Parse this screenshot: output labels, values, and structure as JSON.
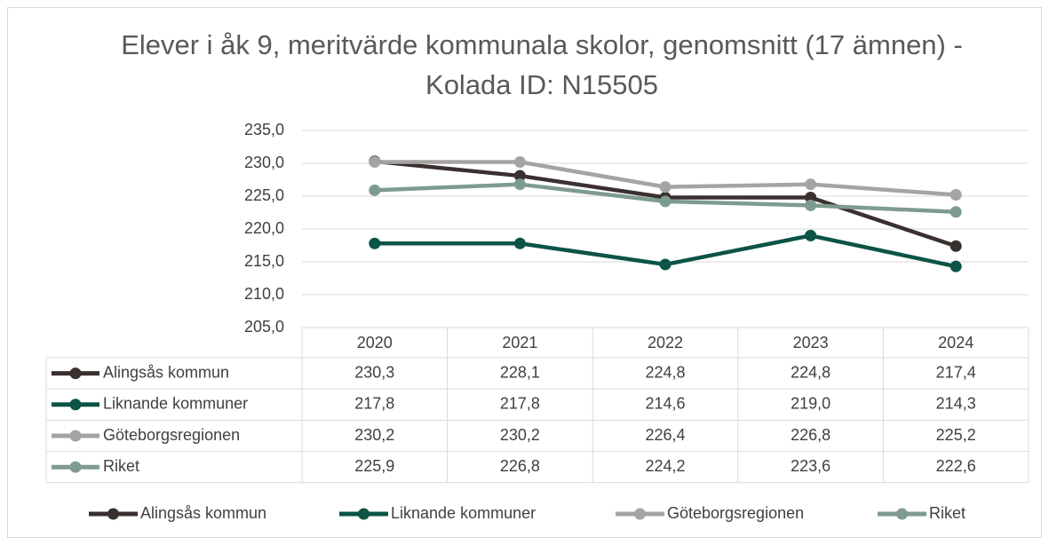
{
  "chart_data": {
    "type": "line",
    "title": "Elever i åk 9, meritvärde kommunala skolor, genomsnitt (17 ämnen) - Kolada ID: N15505",
    "categories": [
      "2020",
      "2021",
      "2022",
      "2023",
      "2024"
    ],
    "series": [
      {
        "name": "Alingsås kommun",
        "color": "#3a302f",
        "values": [
          230.3,
          228.1,
          224.8,
          224.8,
          217.4
        ],
        "value_labels": [
          "230,3",
          "228,1",
          "224,8",
          "224,8",
          "217,4"
        ]
      },
      {
        "name": "Liknande kommuner",
        "color": "#0b5446",
        "values": [
          217.8,
          217.8,
          214.6,
          219.0,
          214.3
        ],
        "value_labels": [
          "217,8",
          "217,8",
          "214,6",
          "219,0",
          "214,3"
        ]
      },
      {
        "name": "Göteborgsregionen",
        "color": "#a6a3a3",
        "values": [
          230.2,
          230.2,
          226.4,
          226.8,
          225.2
        ],
        "value_labels": [
          "230,2",
          "230,2",
          "226,4",
          "226,8",
          "225,2"
        ]
      },
      {
        "name": "Riket",
        "color": "#7e9b8f",
        "values": [
          225.9,
          226.8,
          224.2,
          223.6,
          222.6
        ],
        "value_labels": [
          "225,9",
          "226,8",
          "224,2",
          "223,6",
          "222,6"
        ]
      }
    ],
    "ylim": [
      205,
      235
    ],
    "yticks": [
      {
        "value": 205,
        "label": "205,0"
      },
      {
        "value": 210,
        "label": "210,0"
      },
      {
        "value": 215,
        "label": "215,0"
      },
      {
        "value": 220,
        "label": "220,0"
      },
      {
        "value": 225,
        "label": "225,0"
      },
      {
        "value": 230,
        "label": "230,0"
      },
      {
        "value": 235,
        "label": "235,0"
      }
    ],
    "grid": true,
    "legend": "bottom"
  }
}
